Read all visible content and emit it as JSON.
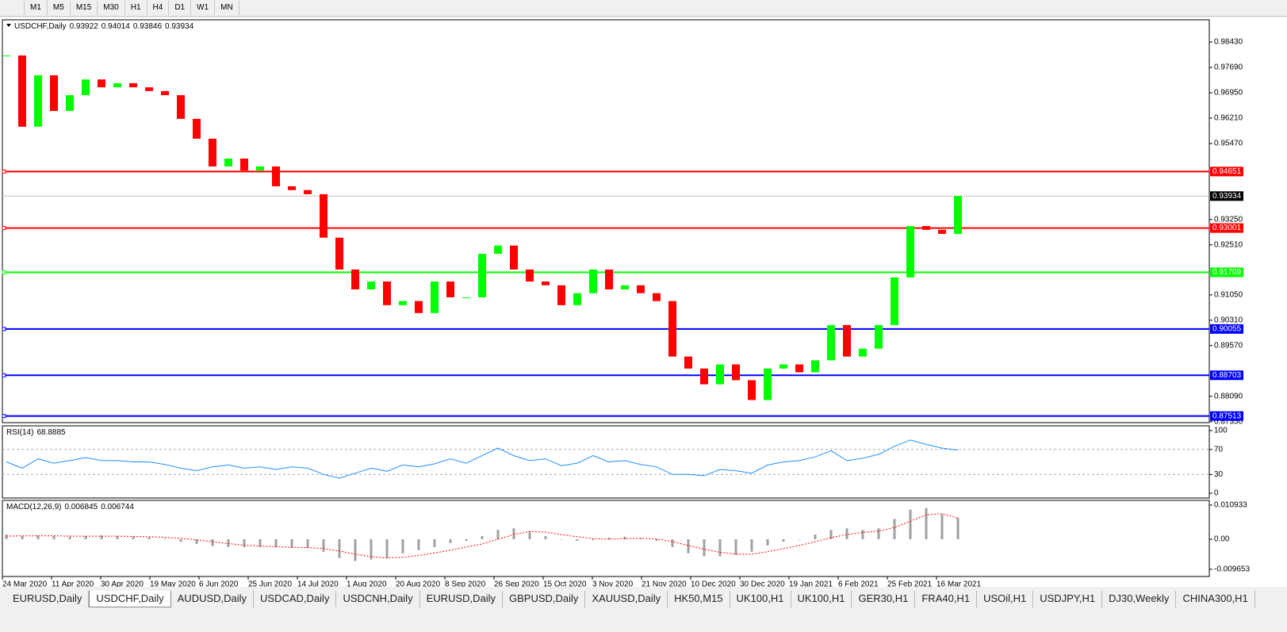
{
  "toolbar": {
    "buttons": [
      "M1",
      "M5",
      "M15",
      "M30",
      "H1",
      "H4",
      "D1",
      "W1",
      "MN"
    ]
  },
  "chart_data": [
    {
      "type": "candlestick",
      "title": "USDCHF,Daily",
      "header_values": [
        0.93922,
        0.94014,
        0.93846,
        0.93934
      ],
      "up_color": "#00ff00",
      "down_color": "#ff0000",
      "closes": [
        0.9804,
        0.9596,
        0.9746,
        0.9642,
        0.9688,
        0.9734,
        0.9711,
        0.9723,
        0.9711,
        0.97,
        0.9688,
        0.9619,
        0.9561,
        0.948,
        0.9503,
        0.9468,
        0.948,
        0.9422,
        0.9411,
        0.9399,
        0.9272,
        0.9179,
        0.9121,
        0.9144,
        0.9075,
        0.9087,
        0.9052,
        0.9144,
        0.9098,
        0.9098,
        0.9225,
        0.9249,
        0.9179,
        0.9144,
        0.9133,
        0.9075,
        0.911,
        0.9179,
        0.9121,
        0.9133,
        0.911,
        0.9087,
        0.8925,
        0.889,
        0.8844,
        0.8902,
        0.8856,
        0.8798,
        0.889,
        0.8902,
        0.8879,
        0.8914,
        0.9017,
        0.8925,
        0.8948,
        0.9017,
        0.9156,
        0.9306,
        0.9295,
        0.9283,
        0.93934
      ],
      "xlim": [
        -0.25,
        75.85
      ],
      "ylim": [
        0.8732,
        0.9908
      ],
      "yticks": [
        {
          "value": 0.9843,
          "label": "0.98430"
        },
        {
          "value": 0.9769,
          "label": "0.97690"
        },
        {
          "value": 0.9695,
          "label": "0.96950"
        },
        {
          "value": 0.9621,
          "label": "0.96210"
        },
        {
          "value": 0.9547,
          "label": "0.95470"
        },
        {
          "value": 0.9325,
          "label": "0.93250"
        },
        {
          "value": 0.9251,
          "label": "0.92510"
        },
        {
          "value": 0.9105,
          "label": "0.91050"
        },
        {
          "value": 0.9031,
          "label": "0.90310"
        },
        {
          "value": 0.8957,
          "label": "0.89570"
        },
        {
          "value": 0.8809,
          "label": "0.88090"
        },
        {
          "value": 0.8735,
          "label": "0.87350"
        }
      ],
      "levels": [
        {
          "value": 0.94651,
          "color": "#ff0000"
        },
        {
          "value": 0.93001,
          "color": "#ff0000"
        },
        {
          "value": 0.91709,
          "color": "#00ff00"
        },
        {
          "value": 0.90055,
          "color": "#0000ff"
        },
        {
          "value": 0.88703,
          "color": "#0000ff"
        },
        {
          "value": 0.87513,
          "color": "#0000ff"
        }
      ]
    },
    {
      "type": "line",
      "title": "RSI(14)",
      "current": 68.8885,
      "color": "#1e90ff",
      "values": [
        50,
        40,
        55,
        48,
        52,
        57,
        52,
        52,
        50,
        50,
        46,
        40,
        36,
        42,
        45,
        40,
        42,
        38,
        42,
        40,
        30,
        24,
        32,
        40,
        35,
        45,
        42,
        47,
        55,
        48,
        60,
        72,
        60,
        52,
        55,
        44,
        48,
        60,
        50,
        52,
        46,
        42,
        30,
        30,
        28,
        38,
        36,
        32,
        45,
        50,
        52,
        58,
        68,
        52,
        56,
        62,
        75,
        85,
        78,
        72,
        68.8885
      ],
      "xlim": [
        -0.25,
        75.85
      ],
      "ylim": [
        -7.6,
        107.6
      ],
      "yticks": [
        0,
        30,
        70,
        100
      ],
      "levels": [
        30,
        70
      ]
    },
    {
      "type": "histogram",
      "title": "MACD(12,26,9)",
      "current": [
        0.006845,
        0.006744
      ],
      "color": "#a0a0a0",
      "values": [
        0.0015,
        0.001,
        0.0012,
        0.001,
        0.0008,
        0.001,
        0.0012,
        0.001,
        0.0008,
        0.0006,
        0.0002,
        -0.0008,
        -0.0015,
        -0.0022,
        -0.0025,
        -0.0026,
        -0.0025,
        -0.0026,
        -0.0028,
        -0.0028,
        -0.004,
        -0.006,
        -0.007,
        -0.0065,
        -0.006,
        -0.0045,
        -0.0035,
        -0.0025,
        -0.0012,
        -0.0005,
        0.001,
        0.003,
        0.0035,
        0.0025,
        0.001,
        0,
        -0.0005,
        -0.0003,
        0.0005,
        0.0008,
        0.0003,
        -0.0005,
        -0.0025,
        -0.0045,
        -0.0055,
        -0.0055,
        -0.005,
        -0.004,
        -0.002,
        -0.0008,
        0,
        0.0015,
        0.003,
        0.0035,
        0.003,
        0.0035,
        0.0065,
        0.0095,
        0.01,
        0.008,
        0.006845
      ],
      "signal": {
        "color": "#ff0000",
        "values": [
          0.001,
          0.0011,
          0.0011,
          0.0011,
          0.001,
          0.001,
          0.001,
          0.001,
          0.0009,
          0.0008,
          0.0006,
          0.0003,
          -0.0002,
          -0.0008,
          -0.0014,
          -0.0019,
          -0.0022,
          -0.0024,
          -0.0026,
          -0.0027,
          -0.003,
          -0.0038,
          -0.0048,
          -0.0056,
          -0.006,
          -0.0058,
          -0.0052,
          -0.0044,
          -0.0035,
          -0.0025,
          -0.0015,
          0,
          0.0015,
          0.0025,
          0.0023,
          0.0015,
          0.0008,
          0.0002,
          0,
          0.0002,
          0.0003,
          0.0001,
          -0.0008,
          -0.002,
          -0.0032,
          -0.0042,
          -0.0048,
          -0.0048,
          -0.004,
          -0.003,
          -0.002,
          -0.0008,
          0.0005,
          0.0015,
          0.0022,
          0.0026,
          0.0038,
          0.0058,
          0.0078,
          0.0082,
          0.006744
        ]
      },
      "xlim": [
        -0.25,
        75.85
      ],
      "ylim": [
        -0.01195,
        0.01246
      ],
      "yticks": [
        {
          "value": -0.009653,
          "label": "-0.009653"
        },
        {
          "value": 0,
          "label": "0.00"
        },
        0.010933
      ],
      "xticks": [
        {
          "value": -0.25,
          "label": "24 Mar 2020"
        },
        {
          "value": 2.85,
          "label": "11 Apr 2020"
        },
        {
          "value": 5.95,
          "label": "30 Apr 2020"
        },
        {
          "value": 9.05,
          "label": "19 May 2020"
        },
        {
          "value": 12.15,
          "label": "6 Jun 2020"
        },
        {
          "value": 15.25,
          "label": "25 Jun 2020"
        },
        {
          "value": 18.35,
          "label": "14 Jul 2020"
        },
        {
          "value": 21.45,
          "label": "1 Aug 2020"
        },
        {
          "value": 24.55,
          "label": "20 Aug 2020"
        },
        {
          "value": 27.65,
          "label": "8 Sep 2020"
        },
        {
          "value": 30.75,
          "label": "26 Sep 2020"
        },
        {
          "value": 33.85,
          "label": "15 Oct 2020"
        },
        {
          "value": 36.95,
          "label": "3 Nov 2020"
        },
        {
          "value": 40.05,
          "label": "21 Nov 2020"
        },
        {
          "value": 43.15,
          "label": "10 Dec 2020"
        },
        {
          "value": 46.25,
          "label": "30 Dec 2020"
        },
        {
          "value": 49.35,
          "label": "19 Jan 2021"
        },
        {
          "value": 52.45,
          "label": "6 Feb 2021"
        },
        {
          "value": 55.55,
          "label": "25 Feb 2021"
        },
        {
          "value": 58.65,
          "label": "16 Mar 2021"
        }
      ]
    }
  ],
  "tabs": {
    "items": [
      "EURUSD,Daily",
      "USDCHF,Daily",
      "AUDUSD,Daily",
      "USDCAD,Daily",
      "USDCNH,Daily",
      "EURUSD,Daily",
      "GBPUSD,Daily",
      "XAUUSD,Daily",
      "HK50,M15",
      "UK100,H1",
      "UK100,H1",
      "GER30,H1",
      "FRA40,H1",
      "USOil,H1",
      "USDJPY,H1",
      "DJ30,Weekly",
      "CHINA300,H1"
    ],
    "active": 1
  }
}
